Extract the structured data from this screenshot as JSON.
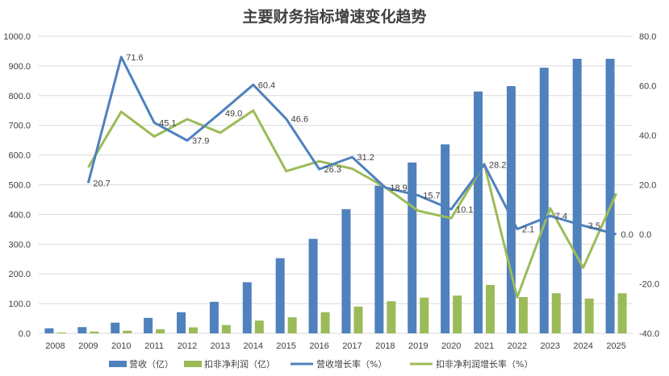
{
  "chart_data": {
    "type": "bar",
    "title": "主要财务指标增速变化趋势",
    "categories": [
      "2008",
      "2009",
      "2010",
      "2011",
      "2012",
      "2013",
      "2014",
      "2015",
      "2016",
      "2017",
      "2018",
      "2019",
      "2020",
      "2021",
      "2022",
      "2023",
      "2024",
      "2025"
    ],
    "left_axis": {
      "min": 0,
      "max": 1000,
      "step": 100,
      "labels": [
        "0.0",
        "100.0",
        "200.0",
        "300.0",
        "400.0",
        "500.0",
        "600.0",
        "700.0",
        "800.0",
        "900.0",
        "1000.0"
      ]
    },
    "right_axis": {
      "min": -40,
      "max": 80,
      "step": 20,
      "labels": [
        "-40.0",
        "-20.0",
        "0.0",
        "20.0",
        "40.0",
        "60.0",
        "80.0"
      ]
    },
    "series": [
      {
        "name": "营收（亿）",
        "kind": "bar",
        "axis": "left",
        "color": "#4F81BD",
        "values": [
          17,
          21,
          36,
          52,
          71,
          106,
          172,
          253,
          318,
          418,
          497,
          575,
          636,
          814,
          832,
          894,
          924,
          924
        ]
      },
      {
        "name": "扣非净利润（亿）",
        "kind": "bar",
        "axis": "left",
        "color": "#9BBB59",
        "values": [
          3,
          6,
          9,
          14,
          20,
          28,
          43,
          54,
          71,
          90,
          108,
          120,
          127,
          163,
          122,
          135,
          117,
          135
        ]
      },
      {
        "name": "营收增长率（%）",
        "kind": "line",
        "axis": "right",
        "color": "#4F81BD",
        "values": [
          null,
          20.7,
          71.6,
          45.1,
          37.9,
          49.0,
          60.4,
          46.6,
          26.3,
          31.2,
          18.9,
          15.7,
          10.1,
          28.2,
          2.1,
          7.4,
          3.5,
          0.0
        ],
        "labels": [
          null,
          "20.7",
          "71.6",
          "45.1",
          "37.9",
          "49.0",
          "60.4",
          "46.6",
          "26.3",
          "31.2",
          "18.9",
          "15.7",
          "10.1",
          "28.2",
          "2.1",
          "7.4",
          "3.5",
          "0.0"
        ]
      },
      {
        "name": "扣非净利润增长率（%）",
        "kind": "line",
        "axis": "right",
        "color": "#9BBB59",
        "values": [
          null,
          27,
          49.5,
          39.5,
          46.5,
          41,
          50,
          25.5,
          29.5,
          26.5,
          19,
          9.5,
          6.5,
          28.5,
          -25.5,
          10.5,
          -13.5,
          16.5
        ]
      }
    ]
  }
}
